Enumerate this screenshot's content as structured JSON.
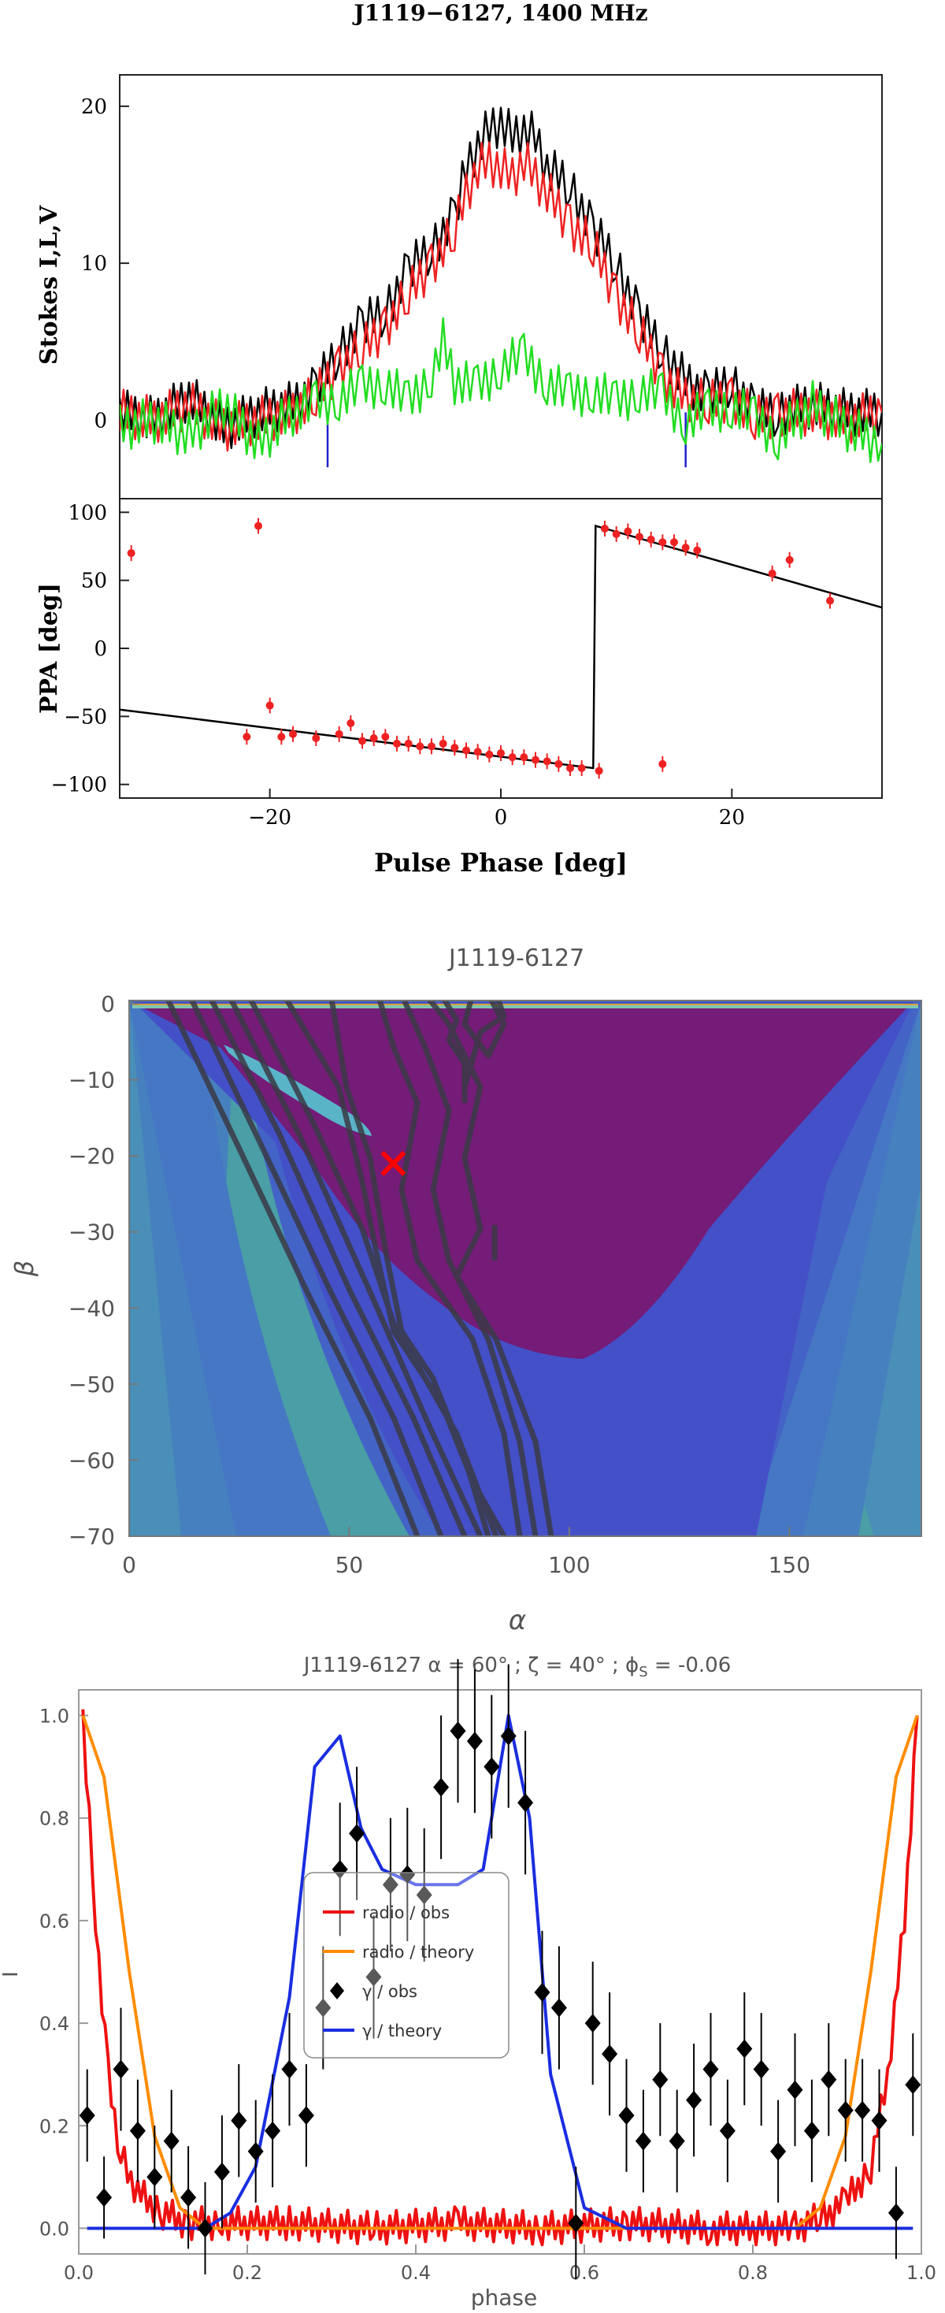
{
  "chart_data": [
    {
      "type": "line",
      "title": "J1119−6127, 1400 MHz",
      "ylabel": "Stokes I,L,V",
      "ylim": [
        -5,
        22
      ],
      "xlim": [
        -33,
        33
      ],
      "yticks": [
        "0",
        "10",
        "20"
      ],
      "vlines": [
        -15,
        16
      ],
      "vline_color": "#2222cc",
      "series": [
        {
          "color": "#000000",
          "x": [
            -33,
            -30,
            -27,
            -24,
            -21,
            -18,
            -16,
            -14,
            -12,
            -10,
            -8,
            -6,
            -4,
            -3,
            -2,
            -1,
            0,
            1,
            2,
            3,
            4,
            6,
            8,
            10,
            12,
            14,
            15,
            16,
            18,
            20,
            22,
            24,
            27,
            30,
            33
          ],
          "y": [
            0.5,
            0.0,
            1.5,
            -0.5,
            0.5,
            1.0,
            2.0,
            4.5,
            6.0,
            7.0,
            9.5,
            11.0,
            13.0,
            16.0,
            17.5,
            18.5,
            19.0,
            18.0,
            18.5,
            18.0,
            16.0,
            15.0,
            12.0,
            10.0,
            6.5,
            4.5,
            3.5,
            2.5,
            1.5,
            2.5,
            0.5,
            0.5,
            1.0,
            0.5,
            0.5
          ]
        },
        {
          "color": "#ee2222",
          "x": [
            -33,
            -30,
            -27,
            -24,
            -21,
            -18,
            -16,
            -14,
            -12,
            -10,
            -8,
            -6,
            -4,
            -3,
            -2,
            -1,
            0,
            1,
            2,
            3,
            4,
            6,
            8,
            10,
            12,
            14,
            15,
            16,
            18,
            20,
            22,
            24,
            27,
            30,
            33
          ],
          "y": [
            0.5,
            0.0,
            1.0,
            -0.5,
            0.0,
            0.5,
            1.5,
            3.5,
            4.5,
            6.0,
            8.0,
            10.0,
            12.0,
            14.5,
            16.0,
            16.5,
            16.0,
            15.5,
            16.5,
            15.5,
            14.5,
            12.5,
            11.0,
            8.0,
            5.5,
            3.0,
            2.0,
            1.5,
            1.0,
            1.5,
            0.0,
            0.5,
            0.5,
            0.0,
            0.5
          ]
        },
        {
          "color": "#22dd22",
          "x": [
            -33,
            -30,
            -27,
            -24,
            -21,
            -18,
            -16,
            -14,
            -12,
            -10,
            -8,
            -6,
            -5,
            -4,
            -2,
            0,
            2,
            4,
            6,
            8,
            10,
            12,
            14,
            16,
            18,
            20,
            22,
            24,
            27,
            30,
            33
          ],
          "y": [
            -0.5,
            0.0,
            -1.0,
            1.0,
            -1.5,
            0.5,
            1.0,
            1.5,
            2.0,
            2.5,
            1.0,
            3.0,
            5.0,
            2.5,
            2.0,
            3.5,
            4.0,
            2.5,
            1.5,
            2.0,
            1.0,
            2.0,
            1.5,
            0.0,
            0.5,
            1.0,
            0.0,
            -1.0,
            1.0,
            -0.5,
            -1.5
          ]
        }
      ]
    },
    {
      "type": "scatter",
      "ylabel": "PPA [deg]",
      "xlabel": "Pulse Phase [deg]",
      "xlim": [
        -33,
        33
      ],
      "ylim": [
        -110,
        110
      ],
      "xticks": [
        "−20",
        "0",
        "20"
      ],
      "yticks": [
        "−100",
        "−50",
        "0",
        "50",
        "100"
      ],
      "fit_line": {
        "x": [
          -33,
          8,
          8.2,
          33
        ],
        "y": [
          -45,
          -88,
          90,
          30
        ]
      },
      "points": {
        "x": [
          -32,
          -21,
          -20,
          -22,
          -19,
          -18,
          -16,
          -14,
          -13,
          -12,
          -11,
          -10,
          -9,
          -8,
          -7,
          -6,
          -5,
          -4,
          -3,
          -2,
          -1,
          0,
          1,
          2,
          3,
          4,
          5,
          6,
          7,
          8.5,
          9,
          10,
          11,
          12,
          13,
          14,
          15,
          16,
          17,
          14,
          23.5,
          25,
          28.5
        ],
        "y": [
          70,
          90,
          -42,
          -65,
          -65,
          -63,
          -66,
          -63,
          -55,
          -68,
          -66,
          -65,
          -70,
          -70,
          -72,
          -72,
          -70,
          -73,
          -75,
          -76,
          -78,
          -77,
          -80,
          -80,
          -82,
          -83,
          -85,
          -88,
          -88,
          -90,
          88,
          84,
          86,
          82,
          80,
          78,
          78,
          74,
          72,
          -85,
          55,
          65,
          35
        ]
      },
      "point_color": "#ee2222"
    },
    {
      "type": "heatmap",
      "title": "J1119-6127",
      "xlabel": "α",
      "ylabel": "β",
      "xlim": [
        0,
        180
      ],
      "ylim": [
        -70,
        0
      ],
      "xticks": [
        "0",
        "50",
        "100",
        "150"
      ],
      "yticks": [
        "0",
        "−10",
        "−20",
        "−30",
        "−40",
        "−50",
        "−60",
        "−70"
      ],
      "marker": {
        "x": 60,
        "y": -21,
        "color": "#ff0000"
      },
      "colors": {
        "teal": "#4a9ea6",
        "mid_blue": "#4577c4",
        "blue": "#4450c8",
        "purple": "#741c78",
        "contour": "#3a3a46"
      }
    },
    {
      "type": "line",
      "title": "J1119-6127 α = 60° ; ζ = 40° ; ϕ",
      "title_sub": "S",
      "title_end": " = -0.06",
      "xlabel": "phase",
      "ylabel": "I",
      "xlim": [
        0,
        1
      ],
      "ylim": [
        -0.05,
        1.05
      ],
      "xticks": [
        "0.0",
        "0.2",
        "0.4",
        "0.6",
        "0.8",
        "1.0"
      ],
      "yticks": [
        "0.0",
        "0.2",
        "0.4",
        "0.6",
        "0.8",
        "1.0"
      ],
      "legend": {
        "placement": "center-left",
        "entries": [
          "radio / obs",
          "radio / theory",
          "γ / obs",
          "γ / theory"
        ]
      },
      "series": [
        {
          "name": "radio / obs",
          "color": "#ee1111",
          "x": [
            0.005,
            0.02,
            0.035,
            0.05,
            0.07,
            0.1,
            0.13,
            0.17,
            0.25,
            0.35,
            0.45,
            0.55,
            0.65,
            0.75,
            0.85,
            0.88,
            0.91,
            0.94,
            0.96,
            0.98,
            0.995
          ],
          "y": [
            1.0,
            0.6,
            0.3,
            0.14,
            0.07,
            0.03,
            0.01,
            0.01,
            0.01,
            0.0,
            0.01,
            0.0,
            0.01,
            0.0,
            0.0,
            0.02,
            0.05,
            0.12,
            0.3,
            0.6,
            1.0
          ]
        },
        {
          "name": "radio / theory",
          "color": "#ff8c00",
          "x": [
            0.005,
            0.03,
            0.06,
            0.09,
            0.12,
            0.15,
            0.2,
            0.3,
            0.5,
            0.7,
            0.8,
            0.85,
            0.88,
            0.91,
            0.94,
            0.97,
            0.995
          ],
          "y": [
            1.0,
            0.88,
            0.5,
            0.18,
            0.04,
            0.0,
            0.0,
            0.0,
            0.0,
            0.0,
            0.0,
            0.0,
            0.04,
            0.18,
            0.5,
            0.88,
            1.0
          ]
        },
        {
          "name": "γ / theory",
          "color": "#1a2de0",
          "x": [
            0.01,
            0.15,
            0.18,
            0.21,
            0.25,
            0.28,
            0.31,
            0.335,
            0.36,
            0.4,
            0.45,
            0.48,
            0.51,
            0.535,
            0.56,
            0.6,
            0.65,
            0.99
          ],
          "y": [
            0.0,
            0.0,
            0.03,
            0.12,
            0.45,
            0.9,
            0.96,
            0.78,
            0.7,
            0.67,
            0.67,
            0.7,
            1.0,
            0.8,
            0.3,
            0.04,
            0.0,
            0.0
          ]
        }
      ],
      "gamma_obs": {
        "name": "γ / obs",
        "color": "#000000",
        "x": [
          0.01,
          0.03,
          0.05,
          0.07,
          0.09,
          0.11,
          0.13,
          0.15,
          0.17,
          0.19,
          0.21,
          0.23,
          0.25,
          0.27,
          0.29,
          0.31,
          0.33,
          0.35,
          0.37,
          0.39,
          0.41,
          0.43,
          0.45,
          0.47,
          0.49,
          0.51,
          0.53,
          0.55,
          0.57,
          0.59,
          0.61,
          0.63,
          0.65,
          0.67,
          0.69,
          0.71,
          0.73,
          0.75,
          0.77,
          0.79,
          0.81,
          0.83,
          0.85,
          0.87,
          0.89,
          0.91,
          0.93,
          0.95,
          0.97,
          0.99
        ],
        "y": [
          0.22,
          0.06,
          0.31,
          0.19,
          0.1,
          0.17,
          0.06,
          0.0,
          0.11,
          0.21,
          0.15,
          0.19,
          0.31,
          0.22,
          0.43,
          0.7,
          0.77,
          0.49,
          0.67,
          0.69,
          0.65,
          0.86,
          0.97,
          0.95,
          0.9,
          0.96,
          0.83,
          0.46,
          0.43,
          0.01,
          0.4,
          0.34,
          0.22,
          0.17,
          0.29,
          0.17,
          0.25,
          0.31,
          0.19,
          0.35,
          0.31,
          0.15,
          0.27,
          0.19,
          0.29,
          0.23,
          0.23,
          0.21,
          0.03,
          0.28
        ],
        "err": [
          0.09,
          0.08,
          0.12,
          0.1,
          0.1,
          0.1,
          0.1,
          0.09,
          0.11,
          0.11,
          0.1,
          0.11,
          0.11,
          0.1,
          0.12,
          0.13,
          0.13,
          0.12,
          0.13,
          0.13,
          0.13,
          0.14,
          0.14,
          0.14,
          0.14,
          0.14,
          0.14,
          0.12,
          0.12,
          0.11,
          0.12,
          0.12,
          0.11,
          0.1,
          0.11,
          0.1,
          0.11,
          0.11,
          0.1,
          0.11,
          0.11,
          0.1,
          0.11,
          0.1,
          0.11,
          0.1,
          0.1,
          0.1,
          0.09,
          0.1
        ]
      }
    }
  ]
}
